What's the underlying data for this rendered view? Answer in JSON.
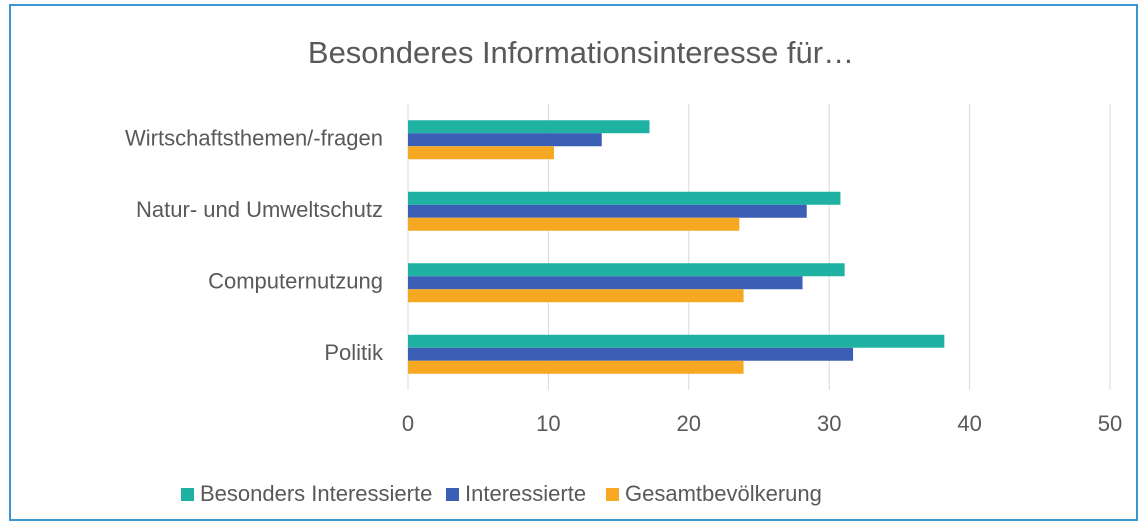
{
  "chart_data": {
    "type": "hbar",
    "title": "Besonderes Informationsinteresse für…",
    "categories": [
      "Wirtschaftsthemen/-fragen",
      "Natur- und Umweltschutz",
      "Computernutzung",
      "Politik"
    ],
    "series": [
      {
        "name": "Besonders Interessierte",
        "color": "#1fb1a1",
        "values": [
          17.2,
          30.8,
          31.1,
          38.2
        ]
      },
      {
        "name": "Interessierte",
        "color": "#3a5fb4",
        "values": [
          13.8,
          28.4,
          28.1,
          31.7
        ]
      },
      {
        "name": "Gesamtbevölkerung",
        "color": "#f7a823",
        "values": [
          10.4,
          23.6,
          23.9,
          23.9
        ]
      }
    ],
    "xlim": [
      0,
      50
    ],
    "xticks": [
      0,
      10,
      20,
      30,
      40,
      50
    ],
    "grid": true,
    "legend": "bottom"
  }
}
